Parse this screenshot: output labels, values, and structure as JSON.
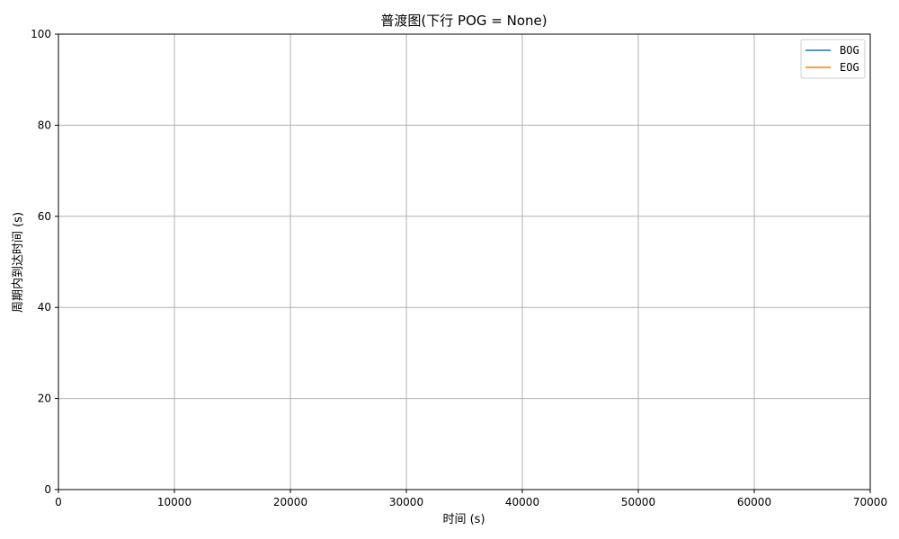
{
  "chart_data": {
    "type": "line",
    "title": "普渡图(下行 POG = None)",
    "xlabel": "时间 (s)",
    "ylabel": "周期内到达时间 (s)",
    "xlim": [
      0,
      70000
    ],
    "ylim": [
      0,
      100
    ],
    "xticks": [
      0,
      10000,
      20000,
      30000,
      40000,
      50000,
      60000,
      70000
    ],
    "yticks": [
      0,
      20,
      40,
      60,
      80,
      100
    ],
    "xtick_labels": [
      "0",
      "10000",
      "20000",
      "30000",
      "40000",
      "50000",
      "60000",
      "70000"
    ],
    "ytick_labels": [
      "0",
      "20",
      "40",
      "60",
      "80",
      "100"
    ],
    "grid": true,
    "legend_position": "top-right",
    "series": [
      {
        "name": "BOG",
        "color": "#1f77b4",
        "x": [],
        "y": []
      },
      {
        "name": "EOG",
        "color": "#ff7f0e",
        "x": [],
        "y": []
      }
    ]
  }
}
